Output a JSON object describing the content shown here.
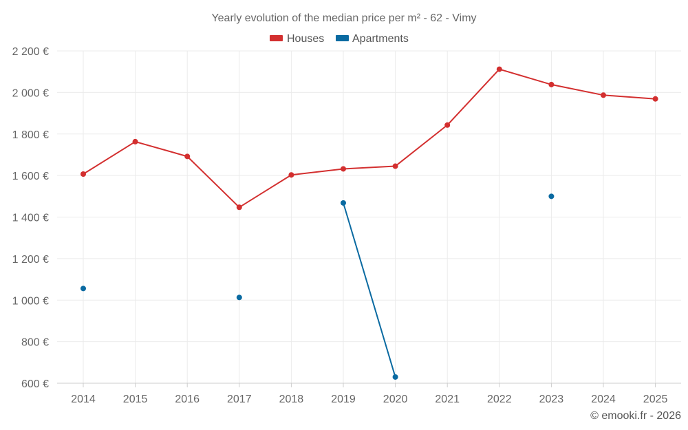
{
  "chart_data": {
    "type": "line",
    "title": "Yearly evolution of the median price per m² - 62 - Vimy",
    "categories": [
      "2014",
      "2015",
      "2016",
      "2017",
      "2018",
      "2019",
      "2020",
      "2021",
      "2022",
      "2023",
      "2024",
      "2025"
    ],
    "y_tick_labels": [
      "600 €",
      "800 €",
      "1 000 €",
      "1 200 €",
      "1 400 €",
      "1 600 €",
      "1 800 €",
      "2 000 €",
      "2 200 €"
    ],
    "y_ticks": [
      600,
      800,
      1000,
      1200,
      1400,
      1600,
      1800,
      2000,
      2200
    ],
    "ylim": [
      600,
      2200
    ],
    "grid": true,
    "legend_position": "top-center",
    "series": [
      {
        "name": "Houses",
        "color": "#d32f2f",
        "values": [
          1607,
          1763,
          1692,
          1447,
          1603,
          1632,
          1645,
          1843,
          2112,
          2038,
          1987,
          1969
        ]
      },
      {
        "name": "Apartments",
        "color": "#0a6aa1",
        "values": [
          1056,
          null,
          null,
          1013,
          null,
          1468,
          630,
          null,
          null,
          1500,
          null,
          null
        ]
      }
    ]
  },
  "credit": "© emooki.fr - 2026"
}
